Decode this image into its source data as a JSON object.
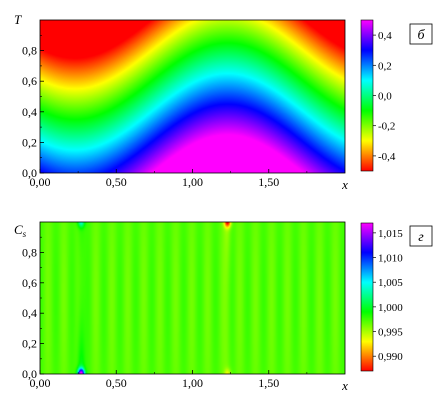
{
  "chart_data": [
    {
      "type": "heatmap",
      "panel_label": "б",
      "ylabel": "T",
      "xlabel": "x",
      "xlim": [
        0.0,
        2.0
      ],
      "ylim": [
        0.0,
        1.0
      ],
      "x_ticks": [
        "0,00",
        "0,50",
        "1,00",
        "1,50"
      ],
      "y_ticks": [
        "0,0",
        "0,2",
        "0,4",
        "0,6",
        "0,8"
      ],
      "colorbar": {
        "min": -0.5,
        "max": 0.5,
        "ticks": [
          "0,4",
          "0,2",
          "0,0",
          "-0,2",
          "-0,4"
        ],
        "colors": [
          "#ff0000",
          "#ffff00",
          "#00ff00",
          "#00ffff",
          "#0000ff",
          "#ff00ff"
        ]
      },
      "field_description": "value = 0.5 - y + 0.25 * cos(pi * (x - 1.23))",
      "trough_x": 0.27,
      "crest_x": 1.23
    },
    {
      "type": "heatmap",
      "panel_label": "г",
      "ylabel": "C_s",
      "xlabel": "x",
      "xlim": [
        0.0,
        2.0
      ],
      "ylim": [
        0.0,
        1.0
      ],
      "x_ticks": [
        "0,00",
        "0,50",
        "1,00",
        "1,50"
      ],
      "y_ticks": [
        "0,0",
        "0,2",
        "0,4",
        "0,6",
        "0,8"
      ],
      "colorbar": {
        "min": 0.987,
        "max": 1.017,
        "ticks": [
          "1,015",
          "1,010",
          "1,005",
          "1,000",
          "0,995",
          "0,990"
        ],
        "colors": [
          "#ff0000",
          "#ffff00",
          "#00ff00",
          "#00ffff",
          "#0000ff",
          "#ff00ff"
        ]
      },
      "background_value": 0.997,
      "features": [
        {
          "x": 0.27,
          "y": 0.0,
          "value": 1.016,
          "kind": "bottom-spot"
        },
        {
          "x": 0.27,
          "y": 1.0,
          "value": 1.003,
          "kind": "top-spot"
        },
        {
          "x": 1.23,
          "y": 1.0,
          "value": 0.988,
          "kind": "top-spot"
        },
        {
          "x": 1.23,
          "y": 0.0,
          "value": 0.994,
          "kind": "bottom-spot"
        }
      ]
    }
  ]
}
